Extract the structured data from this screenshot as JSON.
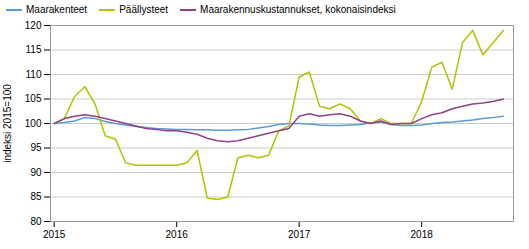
{
  "chart_data": {
    "type": "line",
    "ylabel": "indeksi 2015=100",
    "x": [
      2015.0,
      2015.0833333333333,
      2015.1666666666667,
      2015.25,
      2015.3333333333333,
      2015.4166666666667,
      2015.5,
      2015.5833333333333,
      2015.6666666666667,
      2015.75,
      2015.8333333333333,
      2015.9166666666667,
      2016.0,
      2016.0833333333333,
      2016.1666666666667,
      2016.25,
      2016.3333333333333,
      2016.4166666666667,
      2016.5,
      2016.5833333333333,
      2016.6666666666667,
      2016.75,
      2016.8333333333333,
      2016.9166666666667,
      2017.0,
      2017.0833333333333,
      2017.1666666666667,
      2017.25,
      2017.3333333333333,
      2017.4166666666667,
      2017.5,
      2017.5833333333333,
      2017.6666666666667,
      2017.75,
      2017.8333333333333,
      2017.9166666666667,
      2018.0,
      2018.0833333333333,
      2018.1666666666667,
      2018.25,
      2018.3333333333333,
      2018.4166666666667,
      2018.5,
      2018.5833333333333,
      2018.6666666666667
    ],
    "series": [
      {
        "name": "Maarakenteet",
        "color": "#5b9bd5",
        "values": [
          100.0,
          100.2,
          100.5,
          101.2,
          101.0,
          100.4,
          100.0,
          99.7,
          99.4,
          99.2,
          99.0,
          98.9,
          98.8,
          98.8,
          98.7,
          98.7,
          98.6,
          98.6,
          98.7,
          98.8,
          99.1,
          99.4,
          99.8,
          100.0,
          100.0,
          99.9,
          99.7,
          99.6,
          99.6,
          99.7,
          99.8,
          100.1,
          100.3,
          99.8,
          99.6,
          99.6,
          99.7,
          100.0,
          100.2,
          100.3,
          100.5,
          100.7,
          101.0,
          101.2,
          101.5
        ]
      },
      {
        "name": "Päällysteet",
        "color": "#b5c200",
        "values": [
          100.0,
          101.0,
          105.5,
          107.5,
          104.0,
          97.5,
          96.8,
          92.0,
          91.5,
          91.5,
          91.5,
          91.5,
          91.5,
          92.0,
          94.5,
          84.8,
          84.5,
          85.0,
          93.0,
          93.5,
          93.0,
          93.5,
          98.5,
          99.5,
          109.5,
          110.5,
          103.5,
          103.0,
          104.0,
          103.0,
          100.5,
          100.0,
          101.0,
          100.0,
          100.0,
          100.0,
          104.5,
          111.5,
          112.5,
          107.0,
          116.5,
          119.0,
          114.0,
          116.5,
          119.0
        ]
      },
      {
        "name": "Maarakennuskustannukset, kokonaisindeksi",
        "color": "#943f8c",
        "values": [
          100.0,
          101.0,
          101.5,
          101.8,
          101.5,
          101.0,
          100.5,
          100.0,
          99.5,
          99.0,
          98.8,
          98.5,
          98.5,
          98.2,
          97.8,
          97.0,
          96.5,
          96.3,
          96.5,
          97.0,
          97.5,
          98.0,
          98.5,
          99.0,
          101.5,
          102.0,
          101.5,
          101.8,
          102.0,
          101.5,
          100.5,
          100.0,
          100.5,
          99.8,
          100.0,
          100.0,
          101.0,
          101.8,
          102.2,
          103.0,
          103.5,
          104.0,
          104.2,
          104.5,
          105.0
        ]
      }
    ],
    "xlim": [
      2014.97,
      2018.75
    ],
    "xticks": [
      2015,
      2016,
      2017,
      2018
    ],
    "ylim": [
      80,
      120
    ],
    "yticks": [
      80,
      85,
      90,
      95,
      100,
      105,
      110,
      115,
      120
    ],
    "grid": true,
    "legend": "upper left"
  }
}
